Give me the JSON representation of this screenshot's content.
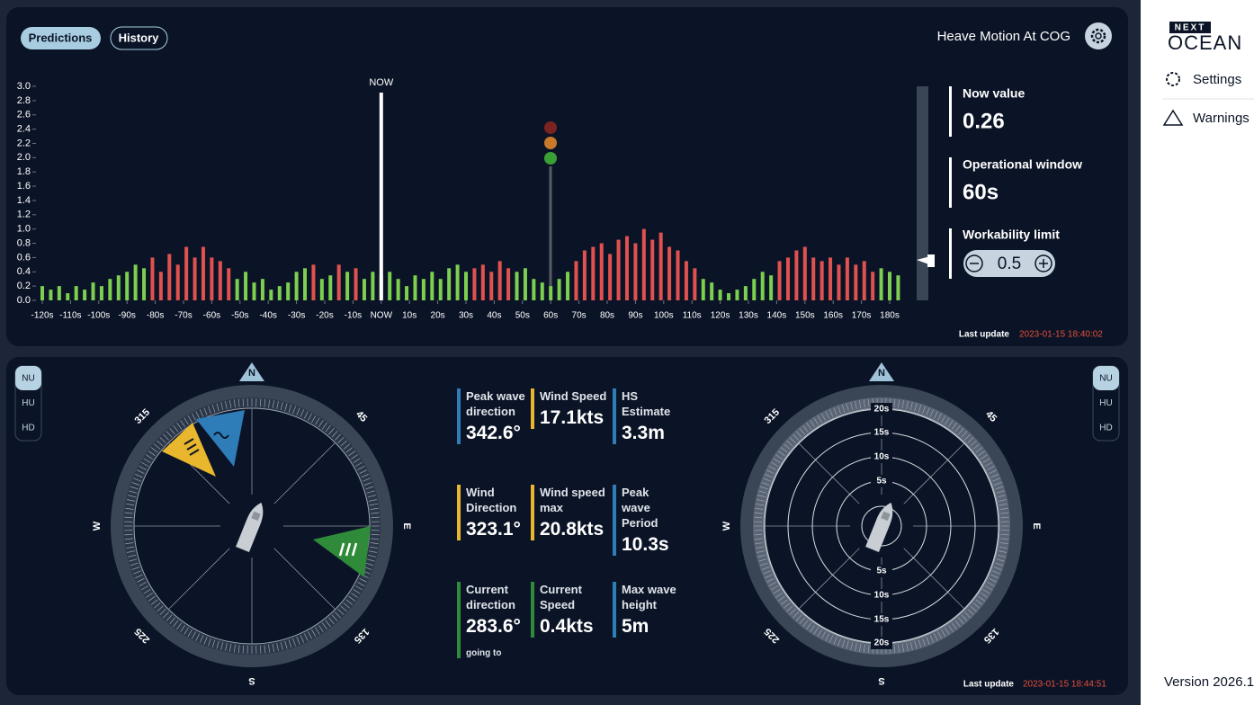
{
  "header": {
    "tabs": [
      "Predictions",
      "History"
    ],
    "title": "Heave Motion At COG"
  },
  "chart_data": {
    "type": "bar",
    "x": [
      -120,
      -117,
      -114,
      -111,
      -108,
      -105,
      -102,
      -99,
      -96,
      -93,
      -90,
      -87,
      -84,
      -81,
      -78,
      -75,
      -72,
      -69,
      -66,
      -63,
      -60,
      -57,
      -54,
      -51,
      -48,
      -45,
      -42,
      -39,
      -36,
      -33,
      -30,
      -27,
      -24,
      -21,
      -18,
      -15,
      -12,
      -9,
      -6,
      -3,
      0,
      3,
      6,
      9,
      12,
      15,
      18,
      21,
      24,
      27,
      30,
      33,
      36,
      39,
      42,
      45,
      48,
      51,
      54,
      57,
      60,
      63,
      66,
      69,
      72,
      75,
      78,
      81,
      84,
      87,
      90,
      93,
      96,
      99,
      102,
      105,
      108,
      111,
      114,
      117,
      120,
      123,
      126,
      129,
      132,
      135,
      138,
      141,
      144,
      147,
      150,
      153,
      156,
      159,
      162,
      165,
      168,
      171,
      174,
      177,
      180,
      183
    ],
    "values": [
      0.2,
      0.15,
      0.2,
      0.1,
      0.2,
      0.15,
      0.25,
      0.2,
      0.3,
      0.35,
      0.4,
      0.5,
      0.45,
      0.6,
      0.4,
      0.65,
      0.5,
      0.75,
      0.6,
      0.75,
      0.6,
      0.55,
      0.45,
      0.3,
      0.4,
      0.25,
      0.3,
      0.15,
      0.2,
      0.25,
      0.4,
      0.45,
      0.5,
      0.3,
      0.35,
      0.5,
      0.4,
      0.45,
      0.3,
      0.4,
      0.35,
      0.4,
      0.3,
      0.2,
      0.35,
      0.3,
      0.4,
      0.3,
      0.45,
      0.5,
      0.4,
      0.45,
      0.5,
      0.4,
      0.55,
      0.45,
      0.4,
      0.45,
      0.3,
      0.25,
      0.2,
      0.3,
      0.4,
      0.55,
      0.7,
      0.75,
      0.8,
      0.65,
      0.85,
      0.9,
      0.8,
      1.0,
      0.85,
      0.95,
      0.75,
      0.7,
      0.55,
      0.45,
      0.3,
      0.25,
      0.15,
      0.1,
      0.15,
      0.2,
      0.3,
      0.4,
      0.35,
      0.55,
      0.6,
      0.7,
      0.75,
      0.6,
      0.55,
      0.6,
      0.5,
      0.6,
      0.5,
      0.55,
      0.4,
      0.45,
      0.4,
      0.35
    ],
    "colors": [
      "#7ccf4f",
      "#7ccf4f",
      "#7ccf4f",
      "#7ccf4f",
      "#7ccf4f",
      "#7ccf4f",
      "#7ccf4f",
      "#7ccf4f",
      "#7ccf4f",
      "#7ccf4f",
      "#7ccf4f",
      "#7ccf4f",
      "#7ccf4f",
      "#e0524f",
      "#e0524f",
      "#e0524f",
      "#e0524f",
      "#e0524f",
      "#e0524f",
      "#e0524f",
      "#e0524f",
      "#e0524f",
      "#e0524f",
      "#7ccf4f",
      "#7ccf4f",
      "#7ccf4f",
      "#7ccf4f",
      "#7ccf4f",
      "#7ccf4f",
      "#7ccf4f",
      "#7ccf4f",
      "#7ccf4f",
      "#e0524f",
      "#7ccf4f",
      "#7ccf4f",
      "#e0524f",
      "#7ccf4f",
      "#e0524f",
      "#7ccf4f",
      "#7ccf4f",
      "#7ccf4f",
      "#7ccf4f",
      "#7ccf4f",
      "#7ccf4f",
      "#7ccf4f",
      "#7ccf4f",
      "#7ccf4f",
      "#7ccf4f",
      "#7ccf4f",
      "#7ccf4f",
      "#7ccf4f",
      "#e0524f",
      "#e0524f",
      "#e0524f",
      "#e0524f",
      "#e0524f",
      "#7ccf4f",
      "#7ccf4f",
      "#7ccf4f",
      "#7ccf4f",
      "#7ccf4f",
      "#7ccf4f",
      "#7ccf4f",
      "#e0524f",
      "#e0524f",
      "#e0524f",
      "#e0524f",
      "#e0524f",
      "#e0524f",
      "#e0524f",
      "#e0524f",
      "#e0524f",
      "#e0524f",
      "#e0524f",
      "#e0524f",
      "#e0524f",
      "#e0524f",
      "#e0524f",
      "#7ccf4f",
      "#7ccf4f",
      "#7ccf4f",
      "#7ccf4f",
      "#7ccf4f",
      "#7ccf4f",
      "#7ccf4f",
      "#7ccf4f",
      "#7ccf4f",
      "#e0524f",
      "#e0524f",
      "#e0524f",
      "#e0524f",
      "#e0524f",
      "#e0524f",
      "#e0524f",
      "#e0524f",
      "#e0524f",
      "#e0524f",
      "#e0524f",
      "#e0524f",
      "#7ccf4f",
      "#7ccf4f",
      "#7ccf4f"
    ],
    "xlim": [
      -124,
      189
    ],
    "ylim": [
      0,
      3
    ],
    "yticks": [
      {
        "value": 0,
        "label": "0.0"
      },
      {
        "value": 0.2,
        "label": "0.2"
      },
      {
        "value": 0.4,
        "label": "0.4"
      },
      {
        "value": 0.6,
        "label": "0.6"
      },
      {
        "value": 0.8,
        "label": "0.8"
      },
      {
        "value": 1,
        "label": "1.0"
      },
      {
        "value": 1.2,
        "label": "1.2"
      },
      {
        "value": 1.4,
        "label": "1.4"
      },
      {
        "value": 1.6,
        "label": "1.6"
      },
      {
        "value": 1.8,
        "label": "1.8"
      },
      {
        "value": 2,
        "label": "2.0"
      },
      {
        "value": 2.2,
        "label": "2.2"
      },
      {
        "value": 2.4,
        "label": "2.4"
      },
      {
        "value": 2.6,
        "label": "2.6"
      },
      {
        "value": 2.8,
        "label": "2.8"
      },
      {
        "value": 3,
        "label": "3.0"
      }
    ],
    "xticks": [
      {
        "value": -120,
        "label": "-120s"
      },
      {
        "value": -110,
        "label": "-110s"
      },
      {
        "value": -100,
        "label": "-100s"
      },
      {
        "value": -90,
        "label": "-90s"
      },
      {
        "value": -80,
        "label": "-80s"
      },
      {
        "value": -70,
        "label": "-70s"
      },
      {
        "value": -60,
        "label": "-60s"
      },
      {
        "value": -50,
        "label": "-50s"
      },
      {
        "value": -40,
        "label": "-40s"
      },
      {
        "value": -30,
        "label": "-30s"
      },
      {
        "value": -20,
        "label": "-20s"
      },
      {
        "value": -10,
        "label": "-10s"
      },
      {
        "value": 0,
        "label": "NOW"
      },
      {
        "value": 10,
        "label": "10s"
      },
      {
        "value": 20,
        "label": "20s"
      },
      {
        "value": 30,
        "label": "30s"
      },
      {
        "value": 40,
        "label": "40s"
      },
      {
        "value": 50,
        "label": "50s"
      },
      {
        "value": 60,
        "label": "60s"
      },
      {
        "value": 70,
        "label": "70s"
      },
      {
        "value": 80,
        "label": "80s"
      },
      {
        "value": 90,
        "label": "90s"
      },
      {
        "value": 100,
        "label": "100s"
      },
      {
        "value": 110,
        "label": "110s"
      },
      {
        "value": 120,
        "label": "120s"
      },
      {
        "value": 130,
        "label": "130s"
      },
      {
        "value": 140,
        "label": "140s"
      },
      {
        "value": 150,
        "label": "150s"
      },
      {
        "value": 160,
        "label": "160s"
      },
      {
        "value": 170,
        "label": "170s"
      },
      {
        "value": 180,
        "label": "180s"
      }
    ],
    "now_label": "NOW"
  },
  "metrics": [
    {
      "label": "Now value",
      "value": "0.26"
    },
    {
      "label": "Operational window",
      "value": "60s"
    },
    {
      "label": "Workability limit",
      "value": "0.5"
    }
  ],
  "last_update_top": {
    "label": "Last update",
    "value": "2023-01-15 18:40:02"
  },
  "sidebar": {
    "logo_top": "NEXT",
    "logo_bottom": "OCEAN",
    "items": [
      "Settings",
      "Warnings"
    ],
    "version": "Version 2026.1"
  },
  "view_modes": [
    "NU",
    "HU",
    "HD"
  ],
  "compass_labels": [
    "N",
    "45",
    "E",
    "135",
    "S",
    "225",
    "W",
    "315"
  ],
  "rings": [
    "5s",
    "10s",
    "15s",
    "20s"
  ],
  "readings": [
    {
      "label": "Peak wave direction",
      "value": "342.6°",
      "color": "#2e7cb8"
    },
    {
      "label": "Wind Speed",
      "value": "17.1kts",
      "color": "#e8b72e"
    },
    {
      "label": "HS Estimate",
      "value": "3.3m",
      "color": "#2e7cb8"
    },
    {
      "label": "Wind Direction",
      "value": "323.1°",
      "color": "#e8b72e"
    },
    {
      "label": "Wind speed max",
      "value": "20.8kts",
      "color": "#e8b72e"
    },
    {
      "label": "Peak wave Period",
      "value": "10.3s",
      "color": "#2e7cb8"
    },
    {
      "label": "Current direction",
      "value": "283.6°",
      "color": "#2f8a3a",
      "note": "going to"
    },
    {
      "label": "Current Speed",
      "value": "0.4kts",
      "color": "#2f8a3a"
    },
    {
      "label": "Max wave height",
      "value": "5m",
      "color": "#2e7cb8"
    }
  ],
  "last_update_bottom": {
    "label": "Last update",
    "value": "2023-01-15 18:44:51"
  }
}
